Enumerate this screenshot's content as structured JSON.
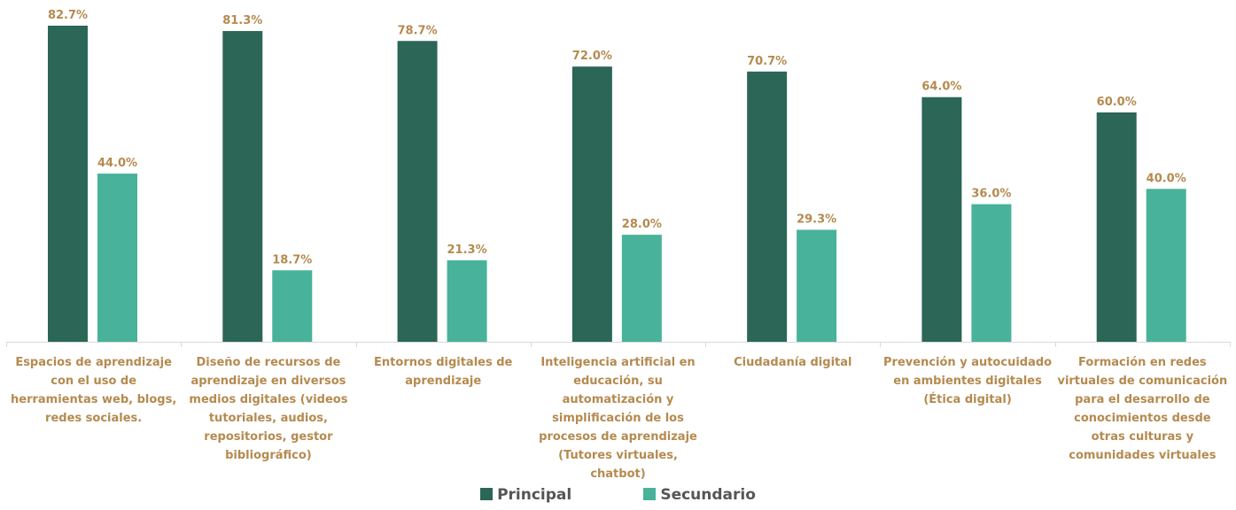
{
  "chart_data": {
    "type": "bar",
    "categories": [
      "Espacios de aprendizaje con el uso de herramientas web, blogs, redes sociales.",
      "Diseño de recursos de aprendizaje en diversos medios digitales (videos tutoriales, audios, repositorios, gestor bibliográfico)",
      "Entornos digitales de aprendizaje",
      "Inteligencia artificial en educación, su automatización y simplificación de los procesos de aprendizaje (Tutores virtuales, chatbot)",
      "Ciudadanía digital",
      "Prevención y autocuidado en ambientes digitales (Ética digital)",
      "Formación en redes virtuales de comunicación para el desarrollo de conocimientos desde otras culturas y comunidades virtuales"
    ],
    "series": [
      {
        "name": "Principal",
        "color": "#2b6657",
        "values": [
          82.7,
          81.3,
          78.7,
          72.0,
          70.7,
          64.0,
          60.0
        ],
        "labels": [
          "82.7%",
          "81.3%",
          "78.7%",
          "72.0%",
          "70.7%",
          "64.0%",
          "60.0%"
        ]
      },
      {
        "name": "Secundario",
        "color": "#48b29a",
        "values": [
          44.0,
          18.7,
          21.3,
          28.0,
          29.3,
          36.0,
          40.0
        ],
        "labels": [
          "44.0%",
          "18.7%",
          "21.3%",
          "28.0%",
          "29.3%",
          "36.0%",
          "40.0%"
        ]
      }
    ],
    "ylim": [
      0,
      90
    ],
    "grid": false,
    "legend_position": "bottom",
    "label_color": "#b58a4f"
  }
}
